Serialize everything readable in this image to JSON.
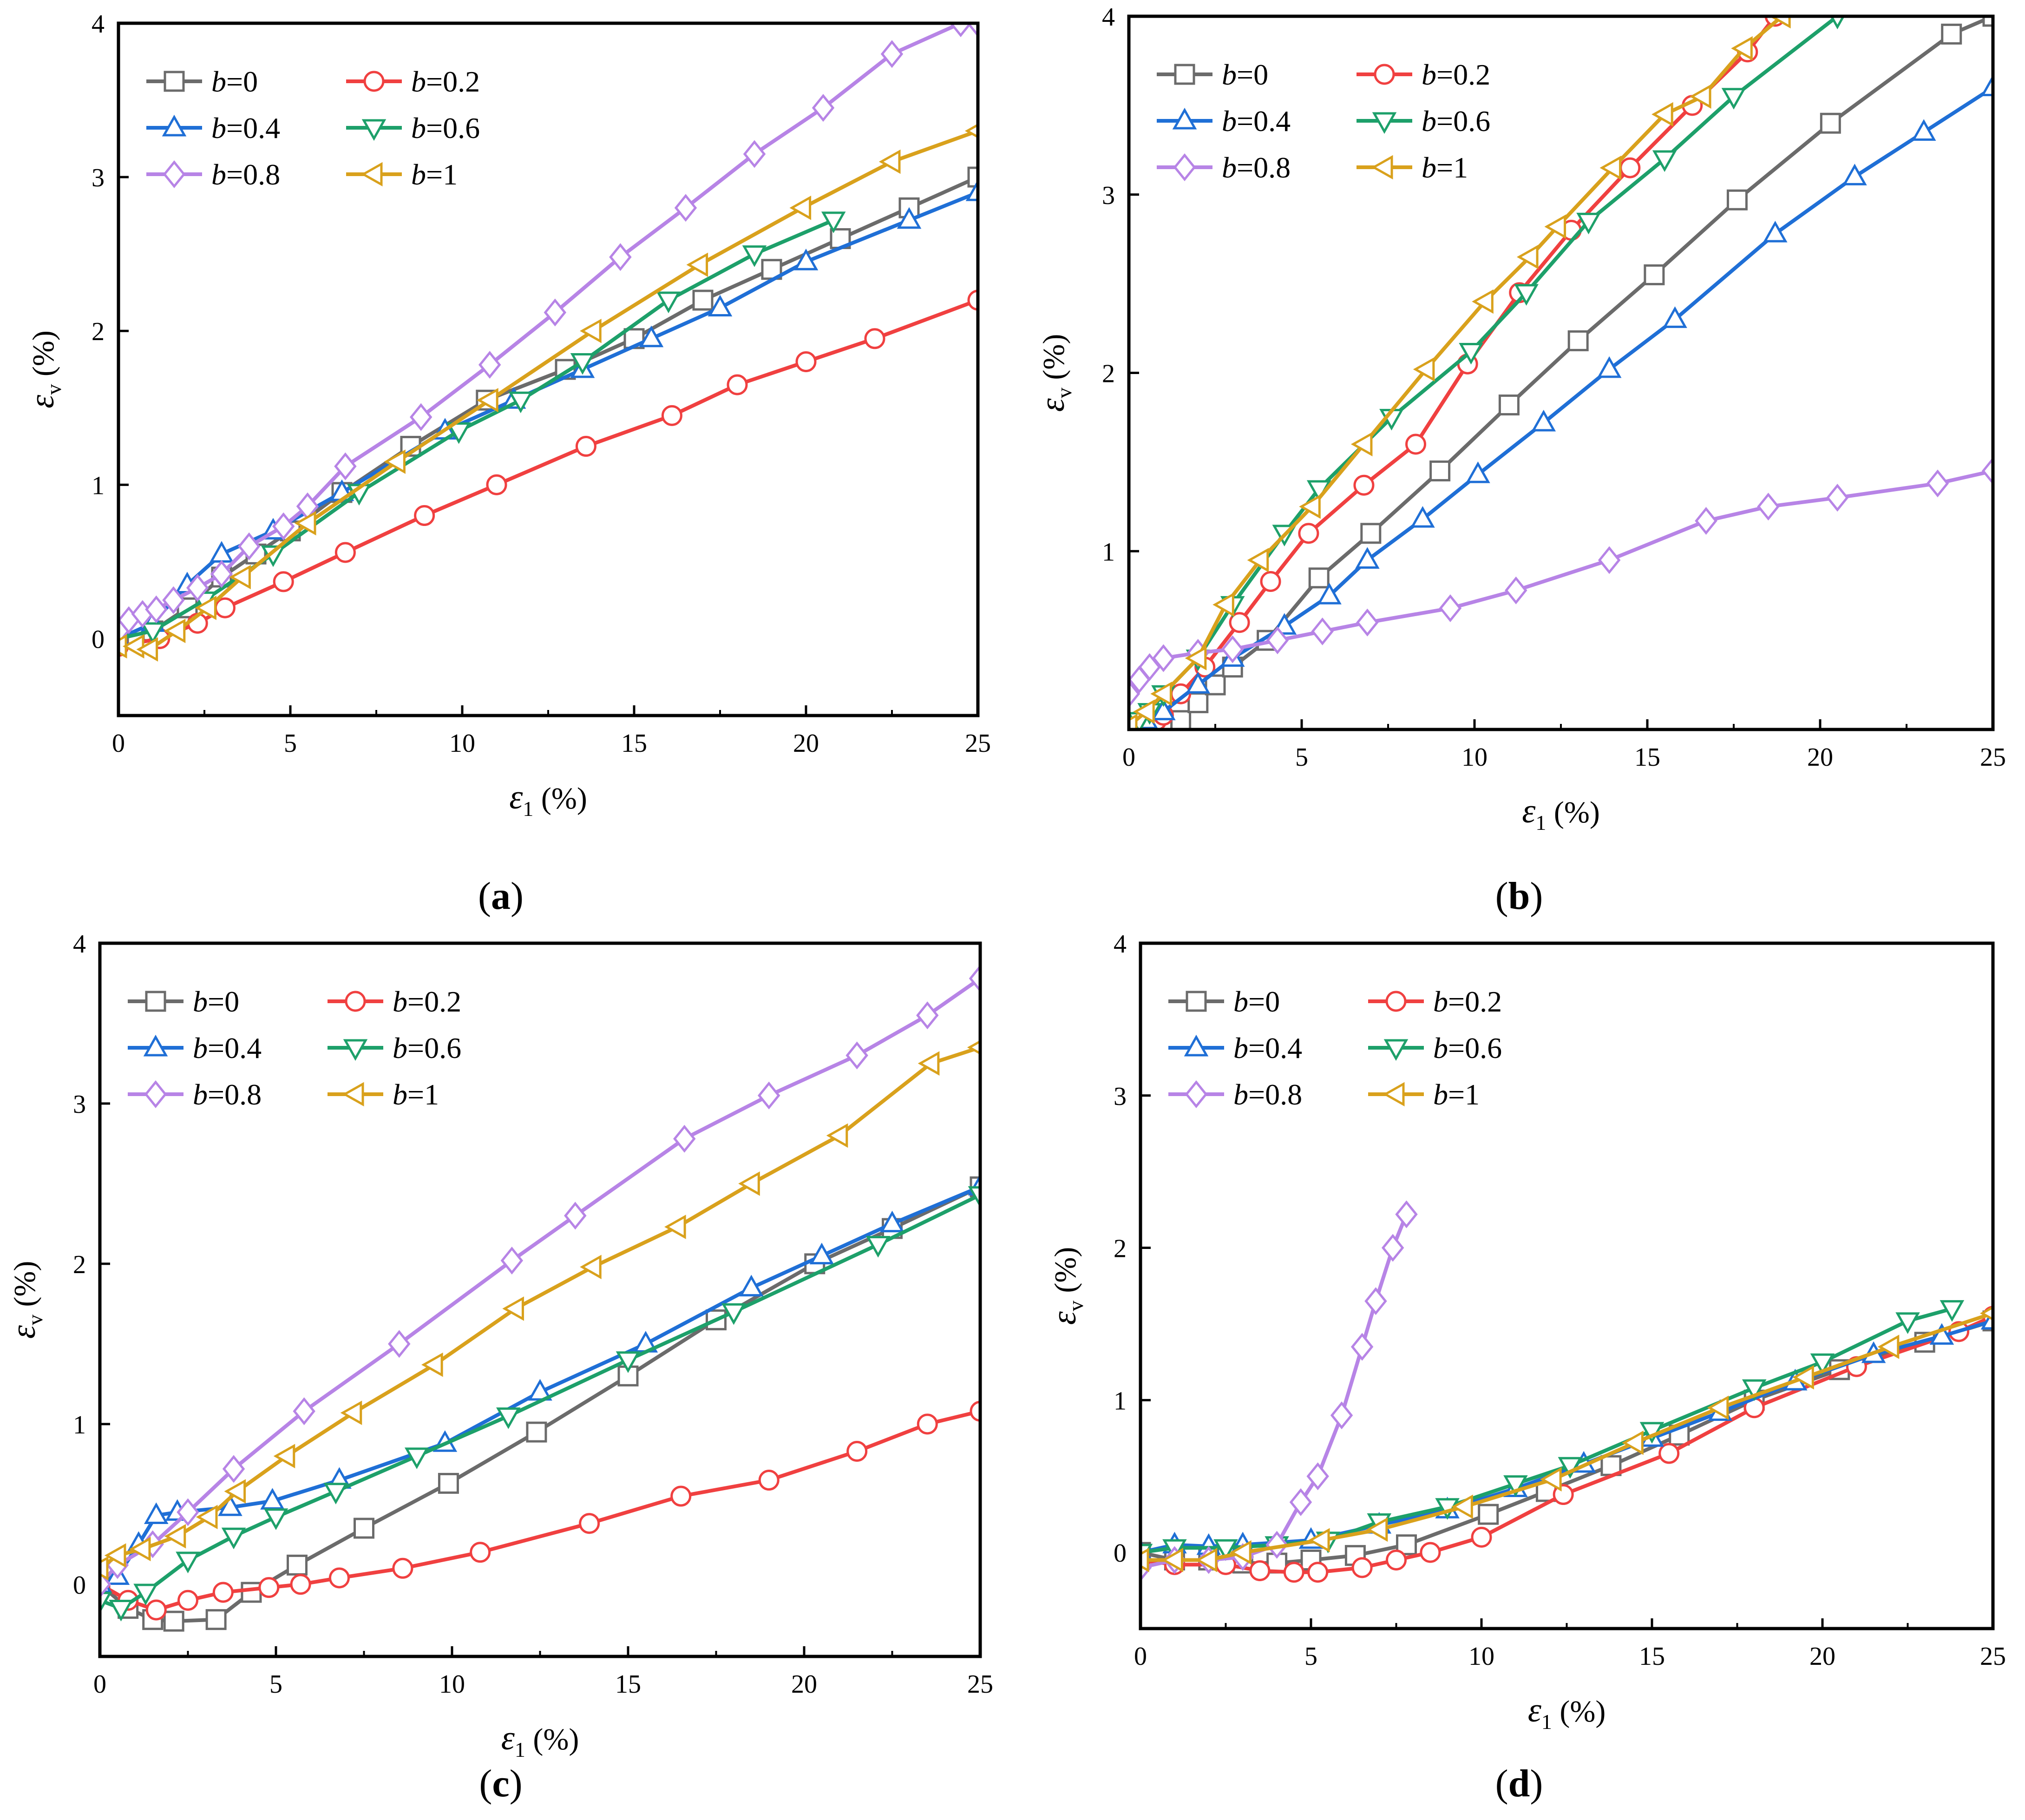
{
  "figure": {
    "panel_labels": [
      "a",
      "b",
      "c",
      "d"
    ]
  },
  "series_styles": [
    {
      "key": "b0",
      "name": "b=0",
      "color": "#6b6b6b",
      "marker": "square"
    },
    {
      "key": "b02",
      "name": "b=0.2",
      "color": "#f04040",
      "marker": "circle"
    },
    {
      "key": "b04",
      "name": "b=0.4",
      "color": "#1f6fd6",
      "marker": "triangle-up"
    },
    {
      "key": "b06",
      "name": "b=0.6",
      "color": "#1da06a",
      "marker": "triangle-down"
    },
    {
      "key": "b08",
      "name": "b=0.8",
      "color": "#b784e6",
      "marker": "diamond"
    },
    {
      "key": "b1",
      "name": "b=1",
      "color": "#d9a11c",
      "marker": "triangle-left"
    }
  ],
  "chart_data": [
    {
      "type": "line",
      "panel": "a",
      "title": "",
      "xlabel": "ε1 (%)",
      "ylabel": "εv (%)",
      "xlim": [
        0,
        25
      ],
      "ylim": [
        -0.5,
        4
      ],
      "xticks": [
        0,
        5,
        10,
        15,
        20,
        25
      ],
      "yticks": [
        0,
        1,
        2,
        3,
        4
      ],
      "legend_position": "top-left",
      "series": [
        {
          "name": "b=0",
          "x": [
            0,
            1,
            2,
            3,
            4,
            5,
            6.5,
            8.5,
            10.7,
            13,
            15,
            17,
            19,
            21,
            23,
            25
          ],
          "y": [
            0,
            0.05,
            0.2,
            0.4,
            0.55,
            0.7,
            0.95,
            1.25,
            1.55,
            1.75,
            1.95,
            2.2,
            2.4,
            2.6,
            2.8,
            3.0
          ]
        },
        {
          "name": "b=0.2",
          "x": [
            0,
            1.2,
            2.3,
            3.1,
            4.8,
            6.6,
            8.9,
            11,
            13.6,
            16.1,
            18,
            20,
            22,
            25
          ],
          "y": [
            -0.05,
            0,
            0.1,
            0.2,
            0.37,
            0.56,
            0.8,
            1.0,
            1.25,
            1.45,
            1.65,
            1.8,
            1.95,
            2.2
          ]
        },
        {
          "name": "b=0.4",
          "x": [
            0,
            1,
            2,
            3,
            4.5,
            6.5,
            9.5,
            11.5,
            13.5,
            15.5,
            17.5,
            20,
            23,
            25
          ],
          "y": [
            0,
            0.1,
            0.35,
            0.55,
            0.7,
            0.95,
            1.35,
            1.55,
            1.75,
            1.95,
            2.15,
            2.45,
            2.72,
            2.9
          ]
        },
        {
          "name": "b=0.6",
          "x": [
            0,
            1,
            2.5,
            4.5,
            7,
            9.9,
            11.7,
            13.5,
            16,
            18.5,
            20.8
          ],
          "y": [
            0,
            0.05,
            0.25,
            0.55,
            0.95,
            1.35,
            1.55,
            1.8,
            2.2,
            2.5,
            2.72
          ]
        },
        {
          "name": "b=0.8",
          "x": [
            0,
            0.3,
            0.7,
            1.1,
            1.6,
            2.3,
            3.0,
            3.8,
            4.8,
            5.5,
            6.6,
            8.8,
            10.8,
            12.7,
            14.6,
            16.5,
            18.5,
            20.5,
            22.5,
            24.5,
            25
          ],
          "y": [
            0.05,
            0.12,
            0.16,
            0.19,
            0.25,
            0.33,
            0.42,
            0.6,
            0.73,
            0.86,
            1.12,
            1.44,
            1.78,
            2.12,
            2.48,
            2.8,
            3.15,
            3.45,
            3.8,
            4.0,
            4.0
          ]
        },
        {
          "name": "b=1",
          "x": [
            0,
            0.5,
            0.9,
            1.7,
            2.6,
            3.6,
            5.5,
            8.1,
            10.8,
            13.8,
            16.9,
            19.9,
            22.5,
            25
          ],
          "y": [
            -0.05,
            -0.05,
            -0.07,
            0.05,
            0.2,
            0.4,
            0.75,
            1.15,
            1.55,
            2.0,
            2.43,
            2.8,
            3.1,
            3.3
          ]
        }
      ]
    },
    {
      "type": "line",
      "panel": "b",
      "title": "",
      "xlabel": "ε1 (%)",
      "ylabel": "εv (%)",
      "xlim": [
        0,
        25
      ],
      "ylim": [
        0,
        4
      ],
      "xticks": [
        0,
        5,
        10,
        15,
        20,
        25
      ],
      "yticks": [
        1,
        2,
        3,
        4
      ],
      "legend_position": "top-left",
      "series": [
        {
          "name": "b=0",
          "x": [
            1.2,
            1.5,
            2,
            2.5,
            3,
            4,
            5.5,
            7,
            9,
            11,
            13,
            15.2,
            17.6,
            20.3,
            23.8,
            25
          ],
          "y": [
            0,
            0.05,
            0.15,
            0.25,
            0.35,
            0.5,
            0.85,
            1.1,
            1.45,
            1.82,
            2.18,
            2.55,
            2.97,
            3.4,
            3.9,
            4.0
          ]
        },
        {
          "name": "b=0.2",
          "x": [
            0.5,
            0.8,
            1.0,
            1.5,
            2.2,
            3.2,
            4.1,
            5.2,
            6.8,
            8.3,
            9.8,
            11.3,
            12.8,
            14.5,
            16.3,
            17.9,
            18.7
          ],
          "y": [
            0.02,
            0.05,
            0.08,
            0.2,
            0.35,
            0.6,
            0.83,
            1.1,
            1.37,
            1.6,
            2.05,
            2.45,
            2.8,
            3.15,
            3.5,
            3.8,
            4.0
          ]
        },
        {
          "name": "b=0.4",
          "x": [
            0.5,
            1,
            2,
            3,
            4.5,
            5.8,
            6.9,
            8.5,
            10.1,
            12,
            13.9,
            15.8,
            18.7,
            21,
            23,
            25
          ],
          "y": [
            0.05,
            0.1,
            0.25,
            0.4,
            0.58,
            0.75,
            0.95,
            1.18,
            1.43,
            1.72,
            2.02,
            2.3,
            2.78,
            3.1,
            3.35,
            3.6
          ]
        },
        {
          "name": "b=0.6",
          "x": [
            0.3,
            0.6,
            1.0,
            2,
            3,
            4.5,
            5.5,
            7.6,
            9.9,
            11.5,
            13.3,
            15.5,
            17.5,
            20.5
          ],
          "y": [
            0.05,
            0.1,
            0.2,
            0.4,
            0.7,
            1.1,
            1.35,
            1.75,
            2.12,
            2.45,
            2.85,
            3.2,
            3.55,
            4.0
          ]
        },
        {
          "name": "b=0.8",
          "x": [
            0,
            0.3,
            0.6,
            1,
            2,
            3,
            4.3,
            5.6,
            6.9,
            9.3,
            11.2,
            13.9,
            16.7,
            18.5,
            20.5,
            23.4,
            25
          ],
          "y": [
            0.2,
            0.28,
            0.35,
            0.4,
            0.43,
            0.45,
            0.5,
            0.55,
            0.6,
            0.68,
            0.78,
            0.95,
            1.17,
            1.25,
            1.3,
            1.38,
            1.45
          ]
        },
        {
          "name": "b=1",
          "x": [
            0,
            0.5,
            1,
            2,
            2.8,
            3.8,
            5.3,
            6.8,
            8.6,
            10.3,
            11.6,
            12.4,
            14,
            15.5,
            16.6,
            17.8,
            18.9
          ],
          "y": [
            0.02,
            0.1,
            0.2,
            0.4,
            0.7,
            0.95,
            1.25,
            1.6,
            2.02,
            2.4,
            2.65,
            2.82,
            3.15,
            3.45,
            3.55,
            3.82,
            4.0
          ]
        }
      ]
    },
    {
      "type": "line",
      "panel": "c",
      "title": "",
      "xlabel": "ε1 (%)",
      "ylabel": "εv (%)",
      "xlim": [
        0,
        25
      ],
      "ylim": [
        -0.45,
        4
      ],
      "xticks": [
        0,
        5,
        10,
        15,
        20,
        25
      ],
      "yticks": [
        0,
        1,
        2,
        3,
        4
      ],
      "legend_position": "top-left",
      "series": [
        {
          "name": "b=0",
          "x": [
            0,
            0.8,
            1.5,
            2.1,
            3.3,
            4.3,
            5.6,
            7.5,
            9.9,
            12.4,
            15,
            17.5,
            20.3,
            22.5,
            25
          ],
          "y": [
            0,
            -0.15,
            -0.22,
            -0.23,
            -0.22,
            -0.05,
            0.12,
            0.35,
            0.63,
            0.95,
            1.3,
            1.65,
            2.0,
            2.22,
            2.48
          ]
        },
        {
          "name": "b=0.2",
          "x": [
            0,
            0.8,
            1.6,
            2.5,
            3.5,
            4.8,
            5.7,
            6.8,
            8.6,
            10.8,
            13.9,
            16.5,
            19,
            21.5,
            23.5,
            25
          ],
          "y": [
            0,
            -0.1,
            -0.16,
            -0.1,
            -0.05,
            -0.02,
            0,
            0.04,
            0.1,
            0.2,
            0.38,
            0.55,
            0.65,
            0.83,
            1.0,
            1.08
          ]
        },
        {
          "name": "b=0.4",
          "x": [
            0,
            0.5,
            1.1,
            1.6,
            2.2,
            3.7,
            4.9,
            6.8,
            9.8,
            12.5,
            15.5,
            18.5,
            20.5,
            22.5,
            25
          ],
          "y": [
            0,
            0.05,
            0.25,
            0.43,
            0.45,
            0.48,
            0.52,
            0.65,
            0.88,
            1.2,
            1.5,
            1.85,
            2.05,
            2.25,
            2.48
          ]
        },
        {
          "name": "b=0.6",
          "x": [
            0,
            0.6,
            1.3,
            2.5,
            3.8,
            5,
            6.7,
            9,
            11.6,
            15,
            18,
            22.1,
            25
          ],
          "y": [
            -0.1,
            -0.15,
            -0.05,
            0.15,
            0.3,
            0.42,
            0.58,
            0.8,
            1.05,
            1.4,
            1.7,
            2.12,
            2.43
          ]
        },
        {
          "name": "b=0.8",
          "x": [
            0,
            0.5,
            1.5,
            2.5,
            3.8,
            5.8,
            8.5,
            11.7,
            13.5,
            16.6,
            19,
            21.5,
            23.5,
            25
          ],
          "y": [
            0,
            0.12,
            0.25,
            0.45,
            0.72,
            1.08,
            1.5,
            2.02,
            2.3,
            2.78,
            3.05,
            3.3,
            3.55,
            3.78
          ]
        },
        {
          "name": "b=1",
          "x": [
            0,
            0.5,
            1.2,
            2.2,
            3.1,
            3.9,
            5.3,
            7.2,
            9.5,
            11.8,
            14,
            16.4,
            18.5,
            21,
            23.6,
            25
          ],
          "y": [
            0.1,
            0.18,
            0.22,
            0.3,
            0.42,
            0.58,
            0.8,
            1.07,
            1.37,
            1.72,
            1.98,
            2.23,
            2.5,
            2.8,
            3.25,
            3.35
          ]
        }
      ]
    },
    {
      "type": "line",
      "panel": "d",
      "title": "",
      "xlabel": "ε1 (%)",
      "ylabel": "εv (%)",
      "xlim": [
        0,
        25
      ],
      "ylim": [
        -0.5,
        4
      ],
      "xticks": [
        0,
        5,
        10,
        15,
        20,
        25
      ],
      "yticks": [
        0,
        1,
        2,
        3,
        4
      ],
      "legend_position": "top-left",
      "series": [
        {
          "name": "b=0",
          "x": [
            0,
            1,
            2,
            3,
            4,
            5,
            6.3,
            7.8,
            10.2,
            11.9,
            13.8,
            15.8,
            18,
            20.5,
            23,
            25
          ],
          "y": [
            0,
            -0.05,
            -0.05,
            -0.07,
            -0.07,
            -0.05,
            -0.02,
            0.05,
            0.25,
            0.4,
            0.57,
            0.77,
            1.0,
            1.2,
            1.38,
            1.52
          ]
        },
        {
          "name": "b=0.2",
          "x": [
            0,
            1,
            2.5,
            3.5,
            4.5,
            5.2,
            6.5,
            7.5,
            8.5,
            10,
            12.4,
            15.5,
            18,
            21,
            24,
            25
          ],
          "y": [
            -0.05,
            -0.08,
            -0.08,
            -0.12,
            -0.13,
            -0.13,
            -0.1,
            -0.05,
            0,
            0.1,
            0.38,
            0.65,
            0.95,
            1.22,
            1.45,
            1.55
          ]
        },
        {
          "name": "b=0.4",
          "x": [
            0,
            1,
            2,
            3,
            5,
            7,
            9,
            11,
            13,
            15,
            17,
            19.2,
            21.5,
            23.5,
            25
          ],
          "y": [
            0,
            0.05,
            0.04,
            0.05,
            0.08,
            0.18,
            0.28,
            0.42,
            0.58,
            0.75,
            0.92,
            1.12,
            1.3,
            1.42,
            1.52
          ]
        },
        {
          "name": "b=0.6",
          "x": [
            0,
            1,
            2.5,
            4,
            5.5,
            7,
            9,
            11,
            12.6,
            15,
            18,
            20,
            22.5,
            23.8
          ],
          "y": [
            0,
            0.03,
            0.03,
            0.05,
            0.08,
            0.2,
            0.3,
            0.45,
            0.57,
            0.8,
            1.08,
            1.25,
            1.52,
            1.6
          ]
        },
        {
          "name": "b=0.8",
          "x": [
            0,
            1,
            2,
            3,
            4,
            4.7,
            5.2,
            5.9,
            6.5,
            6.9,
            7.4,
            7.8
          ],
          "y": [
            -0.1,
            -0.05,
            -0.05,
            -0.03,
            0.05,
            0.33,
            0.5,
            0.9,
            1.35,
            1.65,
            2.0,
            2.22
          ]
        },
        {
          "name": "b=1",
          "x": [
            0,
            1,
            2,
            3,
            5.3,
            7,
            9.5,
            12.1,
            14.5,
            17,
            19.5,
            22,
            25
          ],
          "y": [
            -0.05,
            -0.05,
            -0.05,
            0,
            0.08,
            0.15,
            0.3,
            0.48,
            0.72,
            0.95,
            1.15,
            1.35,
            1.57
          ]
        }
      ]
    }
  ]
}
